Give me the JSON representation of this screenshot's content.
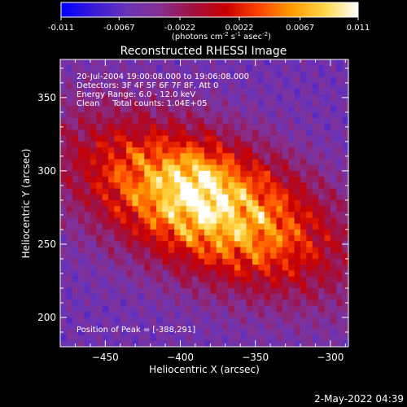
{
  "colorbar": {
    "ticks": [
      "-0.011",
      "-0.0067",
      "-0.0022",
      "0.0022",
      "0.0067",
      "0.011"
    ],
    "tick_values": [
      -0.011,
      -0.0067,
      -0.0022,
      0.0022,
      0.0067,
      0.011
    ],
    "range": [
      -0.011,
      0.011
    ],
    "unit_label": {
      "pre": "(photons cm",
      "exp1": "-2",
      "mid1": " s",
      "exp2": "-1",
      "mid2": " asec",
      "exp3": "-2",
      "post": ")"
    }
  },
  "chart_data": {
    "type": "heatmap",
    "title": "Reconstructed RHESSI Image",
    "xlabel": "Heliocentric X (arcsec)",
    "ylabel": "Heliocentric Y (arcsec)",
    "xlim": [
      -480,
      -288
    ],
    "ylim": [
      180,
      376
    ],
    "x_ticks": [
      -450,
      -400,
      -350,
      -300
    ],
    "y_ticks": [
      200,
      250,
      300,
      350
    ],
    "peak": [
      -388,
      291
    ],
    "colormap_stops": [
      "#0000ff",
      "#3a1ad6",
      "#6a34b8",
      "#862f8f",
      "#a01040",
      "#c80000",
      "#ff4400",
      "#ff9c00",
      "#ffd84a",
      "#ffffff"
    ],
    "annotations": [
      "20-Jul-2004 19:00:08.000 to 19:06:08.000",
      "Detectors: 3F 4F 5F 6F 7F 8F, Att 0",
      "Energy Range: 6.0 - 12.0 keV",
      "Clean     Total counts: 1.04E+05"
    ],
    "peak_label": "Position of Peak = [-388,291]"
  },
  "footer": {
    "timestamp": "2-May-2022 04:39"
  }
}
